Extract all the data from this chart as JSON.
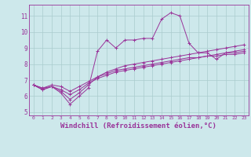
{
  "background_color": "#cde8eb",
  "grid_color": "#aaccce",
  "line_color": "#993399",
  "marker": "+",
  "xlabel": "Windchill (Refroidissement éolien,°C)",
  "xlabel_fontsize": 6.5,
  "ytick_labels": [
    "5",
    "6",
    "7",
    "8",
    "9",
    "10",
    "11"
  ],
  "ytick_vals": [
    5,
    6,
    7,
    8,
    9,
    10,
    11
  ],
  "xtick_vals": [
    0,
    1,
    2,
    3,
    4,
    5,
    6,
    7,
    8,
    9,
    10,
    11,
    12,
    13,
    14,
    15,
    16,
    17,
    18,
    19,
    20,
    21,
    22,
    23
  ],
  "xlim": [
    -0.5,
    23.5
  ],
  "ylim": [
    4.8,
    11.7
  ],
  "series": [
    [
      6.7,
      6.4,
      6.6,
      6.2,
      5.5,
      6.0,
      6.5,
      8.8,
      9.5,
      9.0,
      9.5,
      9.5,
      9.6,
      9.6,
      10.8,
      11.2,
      11.0,
      9.3,
      8.7,
      8.7,
      8.3,
      8.7,
      8.7,
      8.8
    ],
    [
      6.7,
      6.4,
      6.6,
      6.3,
      5.8,
      6.2,
      6.7,
      7.2,
      7.4,
      7.6,
      7.7,
      7.8,
      7.9,
      8.0,
      8.1,
      8.2,
      8.3,
      8.4,
      8.4,
      8.5,
      8.5,
      8.6,
      8.6,
      8.7
    ],
    [
      6.7,
      6.5,
      6.6,
      6.4,
      6.1,
      6.4,
      6.8,
      7.1,
      7.3,
      7.5,
      7.6,
      7.7,
      7.8,
      7.9,
      8.0,
      8.1,
      8.2,
      8.3,
      8.4,
      8.5,
      8.6,
      8.7,
      8.8,
      8.9
    ],
    [
      6.7,
      6.5,
      6.7,
      6.6,
      6.3,
      6.6,
      6.9,
      7.2,
      7.5,
      7.7,
      7.9,
      8.0,
      8.1,
      8.2,
      8.3,
      8.4,
      8.5,
      8.6,
      8.7,
      8.8,
      8.9,
      9.0,
      9.1,
      9.2
    ]
  ]
}
